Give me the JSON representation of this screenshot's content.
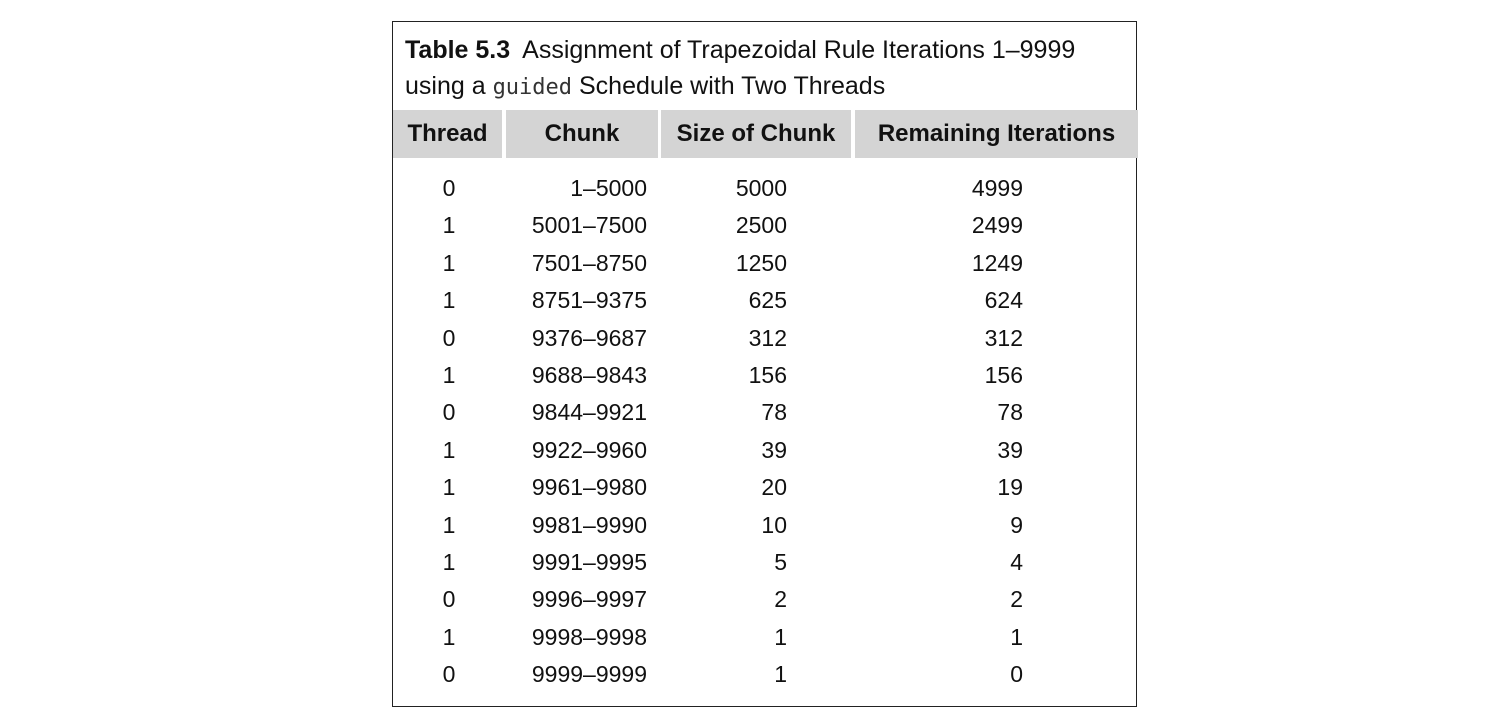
{
  "table": {
    "caption_number": "Table 5.3",
    "caption_line1": "Assignment of Trapezoidal Rule Iterations 1–9999",
    "caption_line2_pre": "using a ",
    "caption_line2_code": "guided",
    "caption_line2_post": " Schedule with Two Threads",
    "headers": [
      "Thread",
      "Chunk",
      "Size of Chunk",
      "Remaining Iterations"
    ],
    "rows": [
      [
        "0",
        "1–5000",
        "5000",
        "4999"
      ],
      [
        "1",
        "5001–7500",
        "2500",
        "2499"
      ],
      [
        "1",
        "7501–8750",
        "1250",
        "1249"
      ],
      [
        "1",
        "8751–9375",
        "625",
        "624"
      ],
      [
        "0",
        "9376–9687",
        "312",
        "312"
      ],
      [
        "1",
        "9688–9843",
        "156",
        "156"
      ],
      [
        "0",
        "9844–9921",
        "78",
        "78"
      ],
      [
        "1",
        "9922–9960",
        "39",
        "39"
      ],
      [
        "1",
        "9961–9980",
        "20",
        "19"
      ],
      [
        "1",
        "9981–9990",
        "10",
        "9"
      ],
      [
        "1",
        "9991–9995",
        "5",
        "4"
      ],
      [
        "0",
        "9996–9997",
        "2",
        "2"
      ],
      [
        "1",
        "9998–9998",
        "1",
        "1"
      ],
      [
        "0",
        "9999–9999",
        "1",
        "0"
      ]
    ]
  }
}
